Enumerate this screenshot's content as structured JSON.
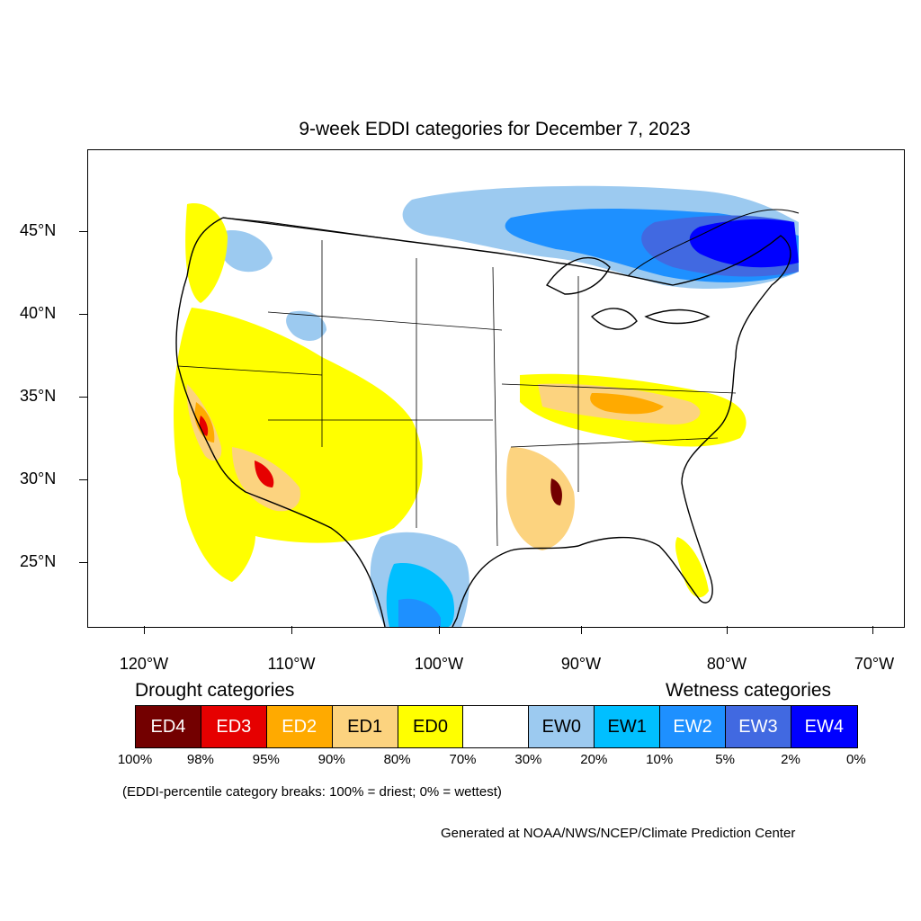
{
  "title": "9-week EDDI categories for December 7, 2023",
  "latitude_labels": [
    "45°N",
    "40°N",
    "35°N",
    "30°N",
    "25°N"
  ],
  "longitude_labels": [
    "120°W",
    "110°W",
    "100°W",
    "90°W",
    "80°W",
    "70°W"
  ],
  "legend": {
    "drought_heading": "Drought categories",
    "wetness_heading": "Wetness categories",
    "categories": [
      {
        "label": "ED4",
        "color": "#730000",
        "text_color": "#ffffff"
      },
      {
        "label": "ED3",
        "color": "#e60000",
        "text_color": "#ffffff"
      },
      {
        "label": "ED2",
        "color": "#ffaa00",
        "text_color": "#ffffff"
      },
      {
        "label": "ED1",
        "color": "#fcd37f",
        "text_color": "#000000"
      },
      {
        "label": "ED0",
        "color": "#ffff00",
        "text_color": "#000000"
      },
      {
        "label": "",
        "color": "#ffffff",
        "text_color": "#000000"
      },
      {
        "label": "EW0",
        "color": "#9ccaf0",
        "text_color": "#000000"
      },
      {
        "label": "EW1",
        "color": "#00bfff",
        "text_color": "#000000"
      },
      {
        "label": "EW2",
        "color": "#1e90ff",
        "text_color": "#ffffff"
      },
      {
        "label": "EW3",
        "color": "#4169e1",
        "text_color": "#ffffff"
      },
      {
        "label": "EW4",
        "color": "#0000ff",
        "text_color": "#ffffff"
      }
    ],
    "percentile_breaks": [
      "100%",
      "98%",
      "95%",
      "90%",
      "80%",
      "70%",
      "30%",
      "20%",
      "10%",
      "5%",
      "2%",
      "0%"
    ]
  },
  "note": "(EDDI-percentile category breaks: 100% = driest; 0% = wettest)",
  "credit": "Generated at NOAA/NWS/NCEP/Climate Prediction Center"
}
